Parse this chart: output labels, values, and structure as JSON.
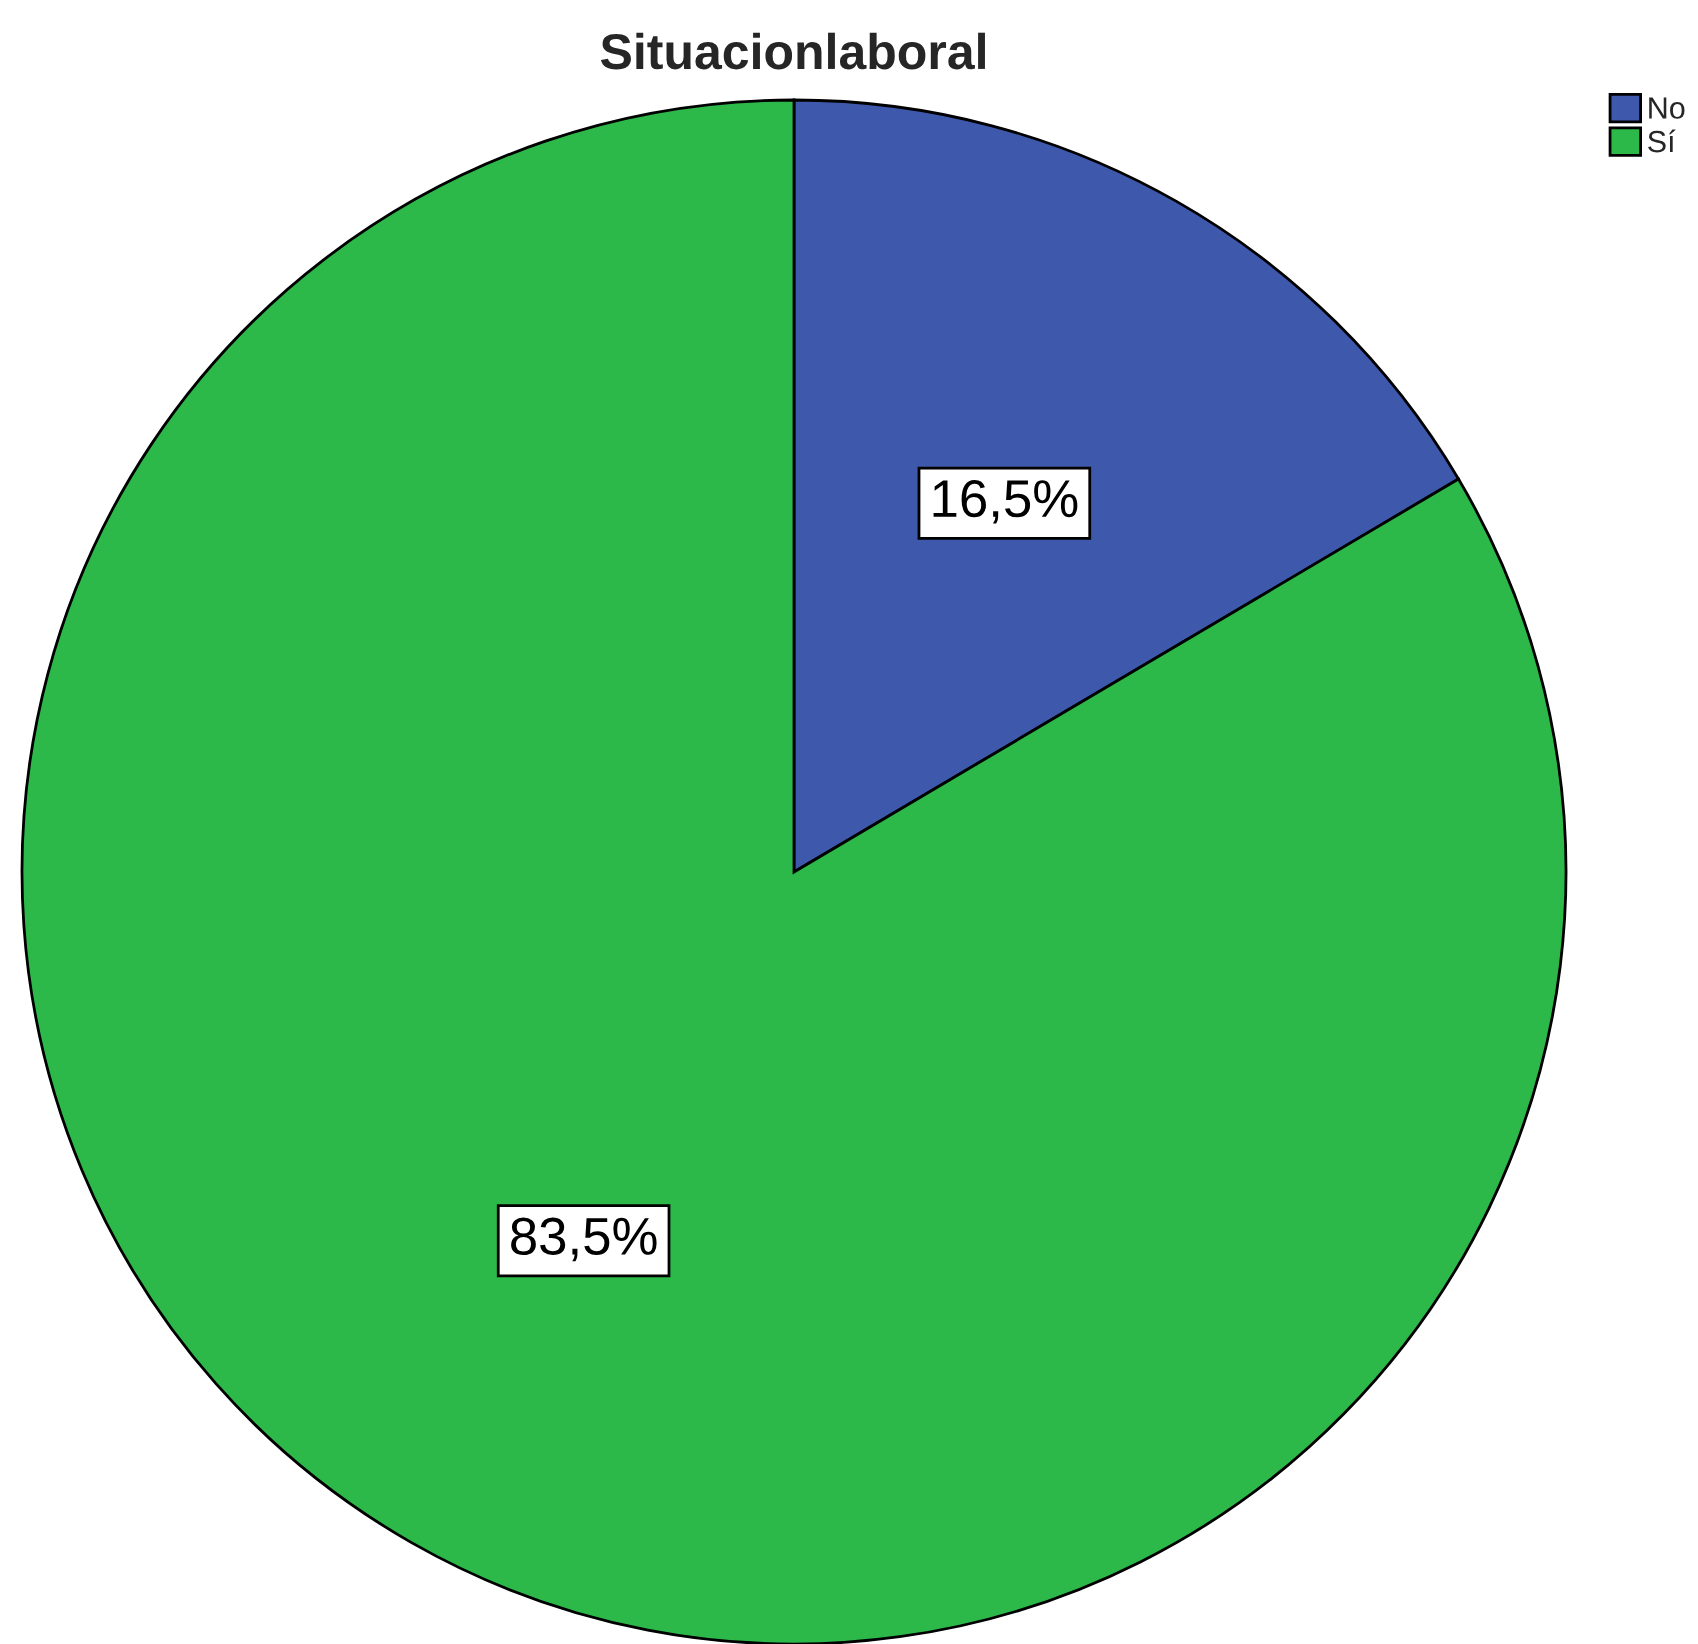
{
  "chart_data": {
    "type": "pie",
    "title": "Situacionlaboral",
    "categories": [
      "No",
      "Sí"
    ],
    "values": [
      16.5,
      83.5
    ],
    "colors": [
      "#3e58ac",
      "#2db84a"
    ],
    "value_labels": [
      "16,5%",
      "83,5%"
    ],
    "legend": "top right"
  }
}
